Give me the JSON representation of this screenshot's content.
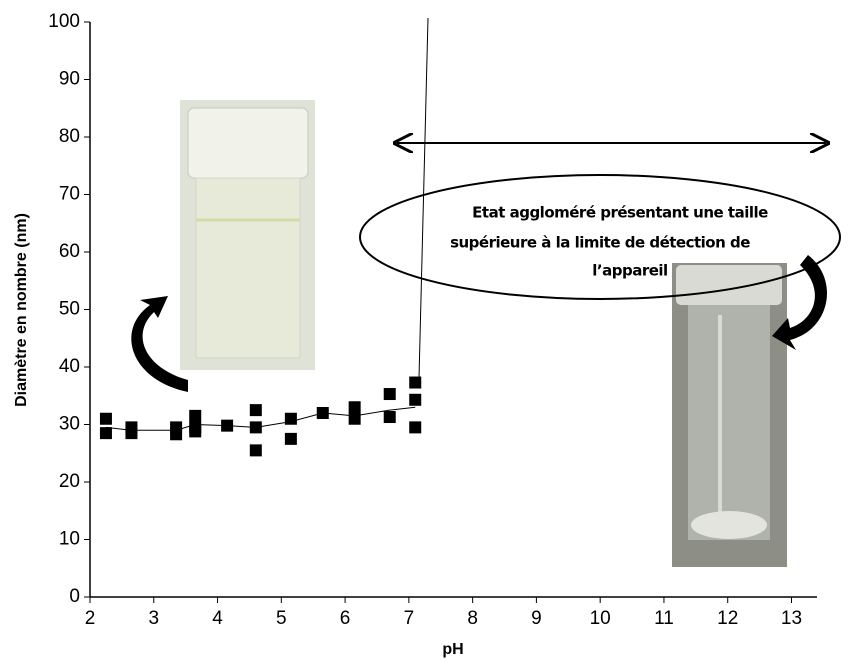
{
  "chart_data": {
    "type": "scatter",
    "x_label": "pH",
    "y_label": "Diamètre en nombre (nm)",
    "annotation": [
      "Etat aggloméré présentant une taille",
      "supérieure à la limite de détection de",
      "l’appareil"
    ],
    "xlim": [
      2,
      13.4
    ],
    "ylim": [
      0,
      100
    ],
    "xticks": [
      2,
      3,
      4,
      5,
      6,
      7,
      8,
      9,
      10,
      11,
      12,
      13
    ],
    "yticks": [
      0,
      10,
      20,
      30,
      40,
      50,
      60,
      70,
      80,
      90,
      100
    ],
    "series": [
      {
        "color": "#000000",
        "marker": "square",
        "x": [
          2.25,
          2.25,
          2.65,
          2.65,
          3.35,
          3.35,
          3.65,
          3.65,
          3.65,
          4.15,
          4.6,
          4.6,
          4.6,
          5.15,
          5.15,
          5.65,
          6.15,
          6.15,
          6.7,
          6.7,
          7.1,
          7.1,
          7.1
        ],
        "values": [
          31,
          28.5,
          29.5,
          28.5,
          29.5,
          28.3,
          31.5,
          29.5,
          28.8,
          29.8,
          32.5,
          29.5,
          25.5,
          31,
          27.5,
          32,
          33,
          31,
          35.3,
          31.3,
          37.3,
          34.3,
          29.5
        ]
      },
      {
        "color": "#000000",
        "marker": "none",
        "x": [
          2.25,
          2.65,
          3.35,
          3.65,
          4.15,
          4.6,
          5.15,
          5.65,
          6.15,
          6.7,
          7.1
        ],
        "values": [
          29.5,
          29,
          29,
          30,
          29.8,
          29.5,
          30.5,
          32,
          31.5,
          32.5,
          33
        ]
      }
    ]
  }
}
